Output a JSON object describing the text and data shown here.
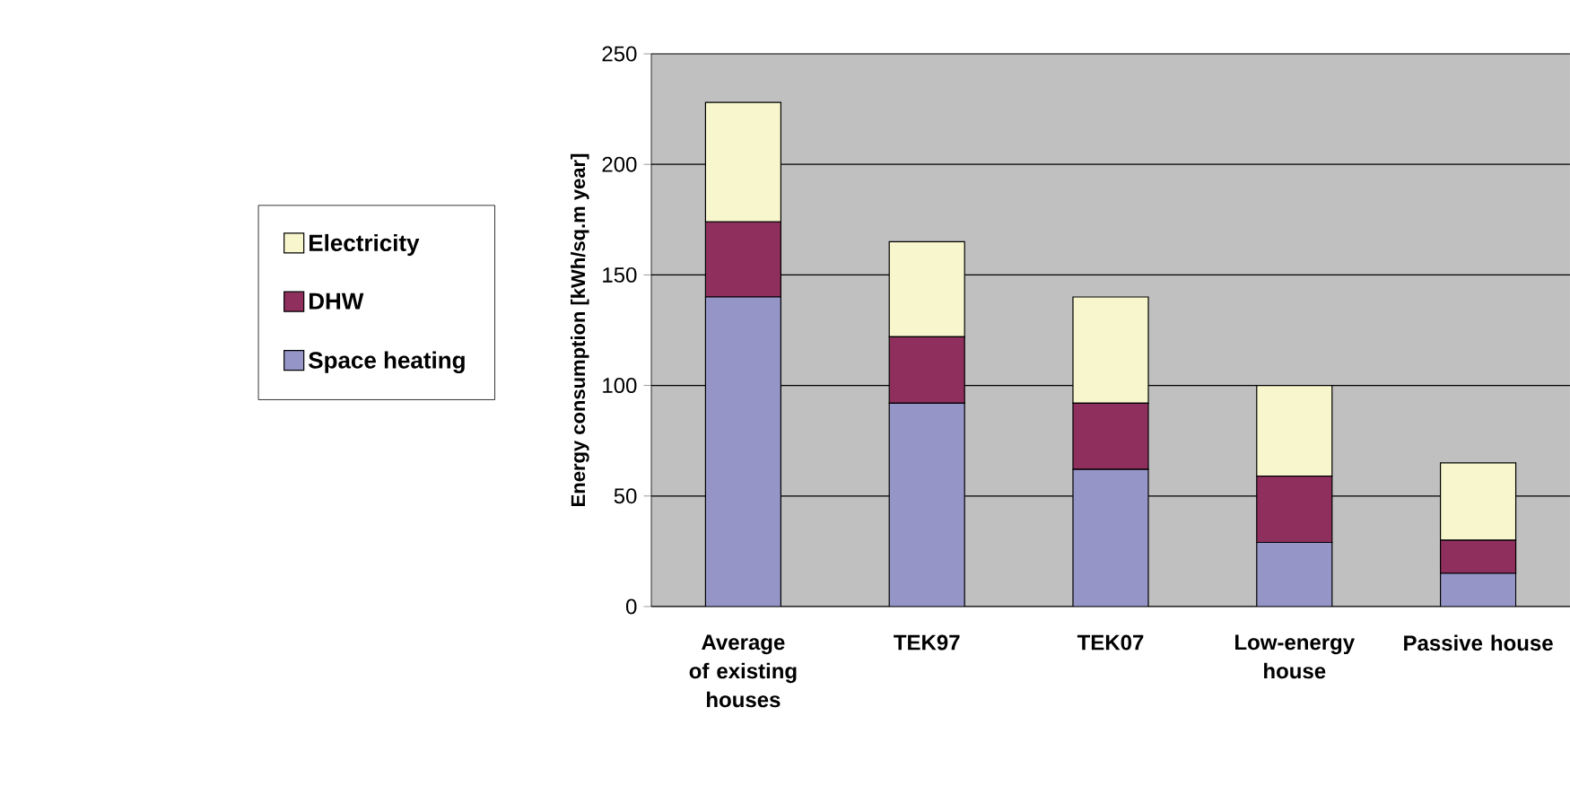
{
  "chart_data": {
    "type": "bar",
    "stacked": true,
    "ylabel": "Energy consumption [kWh/sq.m year]",
    "categories": [
      "Average of existing houses",
      "TEK97",
      "TEK07",
      "Low-energy house",
      "Passive house"
    ],
    "series": [
      {
        "name": "Space heating",
        "color": "#9595c8",
        "values": [
          140,
          92,
          62,
          29,
          15
        ]
      },
      {
        "name": "DHW",
        "color": "#8e2f5e",
        "values": [
          34,
          30,
          30,
          30,
          15
        ]
      },
      {
        "name": "Electricity",
        "color": "#f8f6cc",
        "values": [
          54,
          43,
          48,
          41,
          35
        ]
      }
    ],
    "ylim": [
      0,
      250
    ],
    "yticks": [
      0,
      50,
      100,
      150,
      200,
      250
    ],
    "grid": "y",
    "legend": "left"
  }
}
